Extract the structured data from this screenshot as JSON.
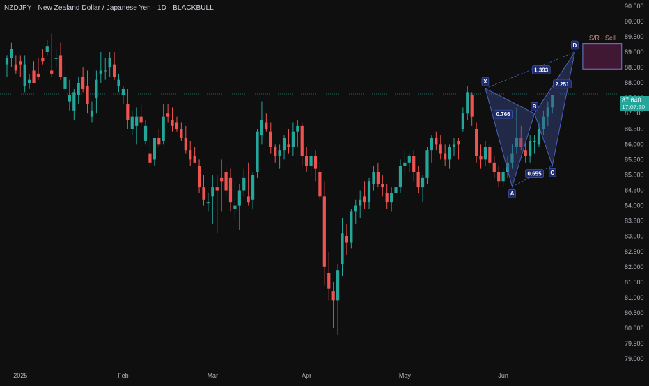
{
  "header": {
    "title": "NZDJPY · New Zealand Dollar / Japanese Yen · 1D · BLACKBULL"
  },
  "price_tag": {
    "price": "87.640",
    "countdown": "17:07:50"
  },
  "colors": {
    "background": "#0f0f0f",
    "up": "#26a69a",
    "down": "#ef5350",
    "pattern_fill": "#3a4a8a",
    "sr_box": "#4a1a3a"
  },
  "chart_data": {
    "type": "candlestick",
    "symbol": "NZDJPY",
    "timeframe": "1D",
    "ylim": [
      78.8,
      90.7
    ],
    "y_ticks": [
      "90.500",
      "90.000",
      "89.500",
      "89.000",
      "88.500",
      "88.000",
      "87.500",
      "87.000",
      "86.500",
      "86.000",
      "85.500",
      "85.000",
      "84.500",
      "84.000",
      "83.500",
      "83.000",
      "82.500",
      "82.000",
      "81.500",
      "81.000",
      "80.500",
      "80.000",
      "79.500",
      "79.000"
    ],
    "x_ticks": [
      {
        "label": "2025",
        "i": 3
      },
      {
        "label": "Feb",
        "i": 26
      },
      {
        "label": "Mar",
        "i": 46
      },
      {
        "label": "Apr",
        "i": 67
      },
      {
        "label": "May",
        "i": 89
      },
      {
        "label": "Jun",
        "i": 111
      }
    ],
    "ohlc": [
      [
        88.6,
        88.9,
        88.2,
        88.8
      ],
      [
        88.8,
        89.3,
        88.5,
        89.1
      ],
      [
        88.6,
        88.9,
        88.3,
        88.4
      ],
      [
        88.7,
        88.9,
        88.2,
        88.6
      ],
      [
        87.9,
        88.9,
        87.7,
        88.6
      ],
      [
        88.0,
        88.3,
        87.8,
        88.1
      ],
      [
        88.4,
        88.7,
        88.0,
        88.0
      ],
      [
        88.3,
        88.8,
        88.1,
        88.2
      ],
      [
        88.8,
        89.1,
        88.6,
        88.7
      ],
      [
        89.0,
        89.4,
        88.9,
        89.2
      ],
      [
        88.4,
        89.6,
        88.2,
        88.3
      ],
      [
        88.8,
        89.1,
        88.5,
        88.8
      ],
      [
        88.9,
        89.3,
        88.1,
        88.2
      ],
      [
        87.8,
        88.7,
        87.6,
        88.2
      ],
      [
        87.4,
        88.1,
        87.1,
        87.6
      ],
      [
        87.1,
        87.8,
        86.8,
        87.7
      ],
      [
        87.6,
        88.2,
        87.3,
        88.0
      ],
      [
        88.2,
        88.5,
        87.7,
        87.8
      ],
      [
        87.9,
        88.4,
        87.0,
        87.3
      ],
      [
        86.9,
        87.4,
        86.7,
        87.1
      ],
      [
        87.5,
        88.4,
        87.0,
        88.1
      ],
      [
        88.3,
        89.0,
        88.0,
        88.4
      ],
      [
        88.4,
        88.8,
        88.1,
        88.4
      ],
      [
        88.5,
        89.0,
        88.2,
        88.8
      ],
      [
        88.6,
        89.0,
        88.1,
        88.2
      ],
      [
        87.9,
        88.3,
        87.7,
        88.1
      ],
      [
        87.6,
        87.9,
        87.3,
        87.8
      ],
      [
        87.3,
        87.8,
        86.5,
        86.8
      ],
      [
        86.5,
        87.1,
        86.3,
        86.9
      ],
      [
        86.6,
        87.2,
        86.0,
        86.9
      ],
      [
        86.9,
        87.3,
        86.6,
        86.7
      ],
      [
        86.1,
        86.8,
        86.0,
        86.6
      ],
      [
        85.7,
        86.2,
        85.3,
        85.4
      ],
      [
        85.5,
        86.2,
        85.3,
        86.2
      ],
      [
        86.2,
        86.5,
        85.9,
        86.0
      ],
      [
        86.1,
        87.3,
        86.0,
        86.9
      ],
      [
        87.0,
        87.3,
        86.7,
        86.9
      ],
      [
        86.8,
        87.2,
        86.4,
        86.6
      ],
      [
        86.7,
        86.9,
        86.4,
        86.5
      ],
      [
        86.5,
        86.7,
        86.1,
        86.2
      ],
      [
        86.2,
        86.6,
        85.7,
        85.8
      ],
      [
        85.8,
        86.1,
        85.3,
        85.5
      ],
      [
        85.6,
        85.9,
        85.4,
        85.4
      ],
      [
        85.3,
        85.5,
        84.4,
        84.6
      ],
      [
        84.6,
        85.0,
        84.0,
        84.2
      ],
      [
        84.1,
        84.4,
        83.8,
        84.1
      ],
      [
        84.3,
        85.0,
        83.4,
        84.6
      ],
      [
        84.6,
        85.0,
        83.1,
        84.5
      ],
      [
        84.9,
        85.5,
        83.8,
        84.8
      ],
      [
        85.1,
        85.3,
        84.3,
        84.5
      ],
      [
        84.9,
        85.2,
        83.8,
        84.1
      ],
      [
        83.9,
        84.8,
        83.5,
        84.0
      ],
      [
        84.0,
        84.7,
        83.2,
        84.5
      ],
      [
        84.5,
        85.2,
        84.3,
        84.9
      ],
      [
        84.3,
        85.4,
        84.0,
        84.1
      ],
      [
        84.2,
        85.1,
        83.9,
        85.0
      ],
      [
        85.1,
        86.5,
        84.9,
        86.4
      ],
      [
        86.3,
        87.4,
        86.0,
        86.8
      ],
      [
        86.7,
        87.0,
        86.4,
        86.5
      ],
      [
        86.4,
        86.7,
        85.7,
        85.9
      ],
      [
        85.9,
        86.0,
        85.4,
        85.6
      ],
      [
        85.6,
        86.0,
        85.2,
        85.8
      ],
      [
        85.8,
        86.3,
        85.5,
        86.2
      ],
      [
        86.0,
        86.5,
        85.7,
        85.9
      ],
      [
        85.9,
        86.7,
        85.6,
        86.4
      ],
      [
        86.4,
        86.8,
        85.9,
        86.6
      ],
      [
        86.6,
        86.7,
        85.3,
        85.6
      ],
      [
        85.6,
        85.9,
        85.1,
        85.3
      ],
      [
        85.3,
        85.8,
        85.0,
        85.6
      ],
      [
        85.6,
        85.8,
        84.8,
        85.2
      ],
      [
        85.1,
        85.4,
        84.2,
        84.3
      ],
      [
        84.3,
        84.8,
        81.4,
        82.0
      ],
      [
        81.8,
        82.5,
        80.9,
        81.3
      ],
      [
        81.2,
        81.5,
        80.0,
        80.9
      ],
      [
        80.9,
        82.1,
        79.8,
        81.9
      ],
      [
        82.1,
        83.6,
        81.7,
        83.1
      ],
      [
        83.0,
        83.4,
        82.4,
        82.8
      ],
      [
        82.8,
        83.9,
        82.6,
        83.8
      ],
      [
        83.8,
        84.2,
        83.4,
        84.0
      ],
      [
        84.0,
        84.5,
        83.6,
        84.2
      ],
      [
        84.3,
        84.8,
        83.9,
        84.1
      ],
      [
        84.1,
        84.9,
        83.9,
        84.8
      ],
      [
        84.7,
        85.3,
        84.5,
        85.1
      ],
      [
        85.1,
        85.4,
        84.6,
        84.7
      ],
      [
        84.7,
        85.0,
        84.3,
        84.6
      ],
      [
        84.4,
        84.7,
        83.9,
        84.1
      ],
      [
        84.1,
        84.6,
        83.8,
        84.4
      ],
      [
        84.4,
        84.9,
        84.0,
        84.6
      ],
      [
        84.6,
        85.5,
        84.4,
        85.3
      ],
      [
        85.3,
        85.8,
        85.0,
        85.4
      ],
      [
        85.4,
        85.7,
        85.1,
        85.6
      ],
      [
        85.6,
        85.8,
        84.8,
        85.1
      ],
      [
        85.1,
        85.3,
        84.4,
        84.6
      ],
      [
        84.6,
        85.0,
        84.1,
        84.9
      ],
      [
        84.9,
        85.9,
        84.7,
        85.8
      ],
      [
        85.8,
        86.3,
        85.4,
        86.2
      ],
      [
        86.2,
        86.4,
        85.8,
        86.0
      ],
      [
        86.0,
        86.3,
        85.5,
        85.7
      ],
      [
        85.7,
        86.0,
        85.3,
        85.5
      ],
      [
        85.5,
        86.0,
        85.2,
        85.9
      ],
      [
        85.9,
        86.2,
        85.6,
        86.0
      ],
      [
        86.1,
        86.2,
        85.5,
        86.0
      ],
      [
        86.5,
        87.2,
        86.4,
        87.0
      ],
      [
        87.0,
        87.9,
        86.8,
        87.7
      ],
      [
        87.6,
        87.7,
        86.6,
        86.9
      ],
      [
        86.5,
        86.7,
        85.4,
        85.6
      ],
      [
        85.6,
        86.0,
        85.2,
        85.5
      ],
      [
        85.5,
        86.1,
        85.3,
        85.9
      ],
      [
        85.9,
        86.0,
        85.3,
        85.4
      ],
      [
        85.4,
        85.6,
        84.9,
        85.1
      ],
      [
        85.1,
        85.3,
        84.6,
        84.8
      ],
      [
        84.8,
        85.2,
        84.6,
        85.1
      ],
      [
        85.1,
        85.6,
        84.9,
        85.4
      ],
      [
        85.4,
        86.0,
        85.2,
        85.7
      ],
      [
        85.9,
        87.2,
        85.7,
        86.2
      ],
      [
        86.2,
        86.6,
        85.8,
        85.9
      ],
      [
        85.8,
        86.1,
        85.4,
        85.6
      ],
      [
        85.6,
        86.3,
        85.4,
        86.1
      ],
      [
        86.1,
        86.3,
        85.7,
        86.1
      ],
      [
        86.0,
        86.7,
        85.9,
        86.5
      ],
      [
        86.5,
        87.1,
        86.3,
        86.9
      ],
      [
        86.9,
        87.4,
        86.6,
        87.2
      ],
      [
        87.2,
        87.6,
        87.0,
        87.6
      ]
    ],
    "pattern": {
      "points": [
        {
          "label": "X",
          "i": 107,
          "y": 87.82
        },
        {
          "label": "A",
          "i": 113,
          "y": 84.62
        },
        {
          "label": "B",
          "i": 118,
          "y": 87.0
        },
        {
          "label": "C",
          "i": 122,
          "y": 85.3
        },
        {
          "label": "D",
          "i": 127,
          "y": 89.0
        }
      ],
      "ratios": [
        {
          "text": "0.766",
          "i": 111.0,
          "y": 86.98
        },
        {
          "text": "0.655",
          "i": 118.0,
          "y": 85.04
        },
        {
          "text": "1.393",
          "i": 119.5,
          "y": 88.42
        },
        {
          "text": "2.251",
          "i": 124.2,
          "y": 87.96
        }
      ]
    },
    "sr_zone": {
      "label": "S/R - Sell",
      "y_top": 89.28,
      "y_bottom": 88.45,
      "i_start": 128.8,
      "i_end": 137.5
    },
    "last_price": 87.64
  }
}
